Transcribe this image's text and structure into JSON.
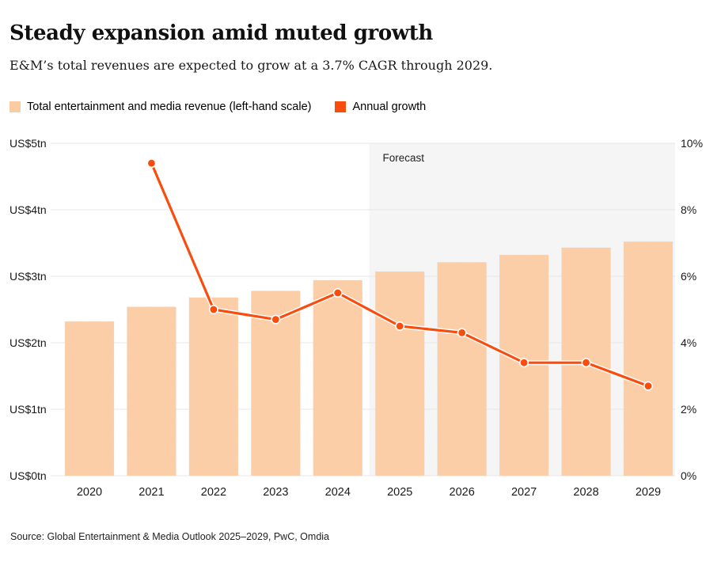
{
  "header": {
    "title": "Steady expansion amid muted growth",
    "subtitle": "E&M’s total revenues are expected to grow at a 3.7% CAGR through 2029."
  },
  "legend": [
    {
      "label": "Total entertainment and media revenue (left-hand scale)",
      "color": "#FBCBA1"
    },
    {
      "label": "Annual growth",
      "color": "#F84D0D"
    }
  ],
  "colors": {
    "bar": "#FBCBA1",
    "line": "#F84D0D",
    "forecast_bg": "#F5F5F5",
    "grid": "#E7E7E7",
    "axis_text": "#1A1A1A",
    "forecast_text": "#222222"
  },
  "chart_data": {
    "type": "bar+line",
    "title": "Steady expansion amid muted growth",
    "categories": [
      "2020",
      "2021",
      "2022",
      "2023",
      "2024",
      "2025",
      "2026",
      "2027",
      "2028",
      "2029"
    ],
    "series": [
      {
        "name": "Total entertainment and media revenue (left-hand scale)",
        "type": "bar",
        "axis": "left",
        "unit": "US$ trillion",
        "values": [
          2.32,
          2.54,
          2.68,
          2.78,
          2.94,
          3.07,
          3.21,
          3.32,
          3.43,
          3.52
        ]
      },
      {
        "name": "Annual growth",
        "type": "line",
        "axis": "right",
        "unit": "%",
        "values": [
          null,
          9.4,
          5.0,
          4.7,
          5.5,
          4.5,
          4.3,
          3.4,
          3.4,
          2.7
        ]
      }
    ],
    "left_axis": {
      "ticks": [
        "US$0tn",
        "US$1tn",
        "US$2tn",
        "US$3tn",
        "US$4tn",
        "US$5tn"
      ],
      "min": 0,
      "max": 5
    },
    "right_axis": {
      "ticks": [
        "0%",
        "2%",
        "4%",
        "6%",
        "8%",
        "10%"
      ],
      "min": 0,
      "max": 10
    },
    "forecast": {
      "label": "Forecast",
      "start_category": "2025"
    },
    "grid": true,
    "legend_position": "top-left"
  },
  "source": "Source: Global Entertainment & Media Outlook 2025–2029, PwC, Omdia"
}
